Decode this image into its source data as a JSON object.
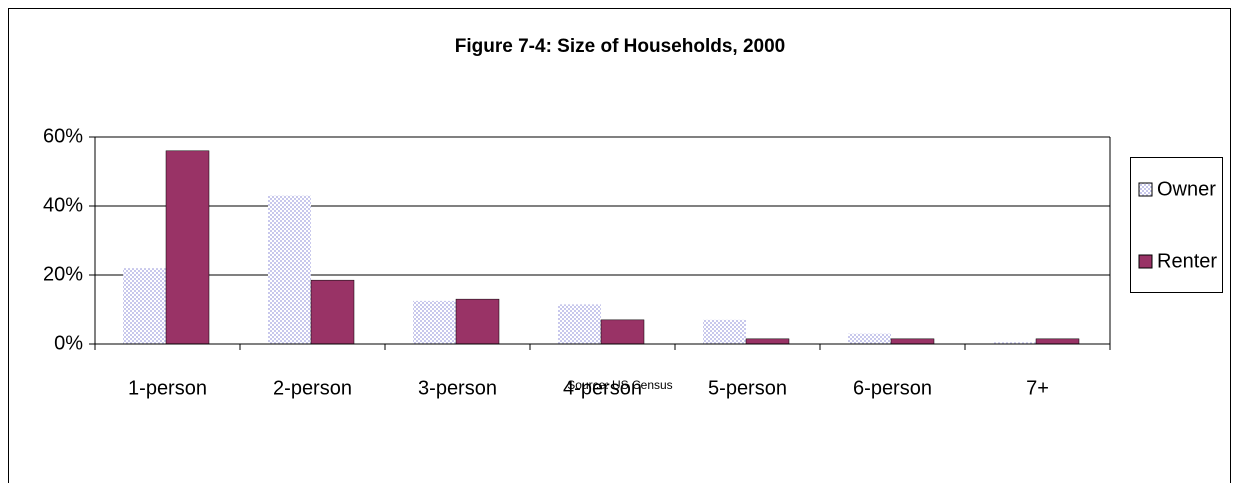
{
  "chart_data": {
    "type": "bar",
    "title": "Figure 7-4:  Size of Households, 2000",
    "source": "Source: US Census",
    "categories": [
      "1-person",
      "2-person",
      "3-person",
      "4-person",
      "5-person",
      "6-person",
      "7+"
    ],
    "series": [
      {
        "name": "Owner",
        "color": "#c8c8ec",
        "pattern": "dots",
        "values": [
          22,
          43,
          12.5,
          11.5,
          7,
          3,
          0.5
        ]
      },
      {
        "name": "Renter",
        "color": "#993366",
        "values": [
          56,
          18.5,
          13,
          7,
          1.5,
          1.5,
          1.5
        ]
      }
    ],
    "ylim": [
      0,
      60
    ],
    "yticks": [
      {
        "value": 0,
        "label": "0%"
      },
      {
        "value": 20,
        "label": "20%"
      },
      {
        "value": 40,
        "label": "40%"
      },
      {
        "value": 60,
        "label": "60%"
      }
    ],
    "grid": true,
    "legend": "right"
  }
}
